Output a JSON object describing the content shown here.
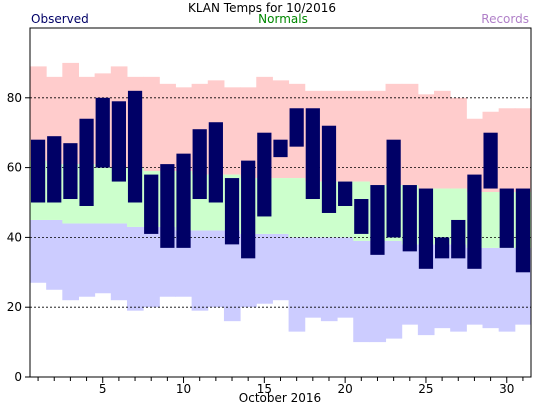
{
  "chart_data": {
    "type": "bar",
    "title": "KLAN Temps for 10/2016",
    "xlabel": "October 2016",
    "ylabel": "",
    "xlim": [
      0.5,
      31.5
    ],
    "ylim": [
      0,
      100
    ],
    "grid": "dashed-y",
    "legend": [
      {
        "name": "Observed",
        "color": "#000066"
      },
      {
        "name": "Normals",
        "color": "#008800"
      },
      {
        "name": "Records",
        "color": "#b080c8"
      }
    ],
    "x_ticks": [
      5,
      10,
      15,
      20,
      25,
      30
    ],
    "y_ticks": [
      0,
      20,
      40,
      60,
      80
    ],
    "days": [
      1,
      2,
      3,
      4,
      5,
      6,
      7,
      8,
      9,
      10,
      11,
      12,
      13,
      14,
      15,
      16,
      17,
      18,
      19,
      20,
      21,
      22,
      23,
      24,
      25,
      26,
      27,
      28,
      29,
      30,
      31
    ],
    "series": [
      {
        "name": "Records",
        "record_high": [
          89,
          86,
          90,
          86,
          87,
          89,
          86,
          86,
          84,
          83,
          84,
          85,
          83,
          83,
          86,
          85,
          84,
          82,
          82,
          82,
          82,
          82,
          84,
          84,
          81,
          82,
          80,
          74,
          76,
          77,
          77
        ],
        "record_low": [
          27,
          25,
          22,
          23,
          24,
          22,
          19,
          20,
          23,
          23,
          19,
          20,
          16,
          20,
          21,
          22,
          13,
          17,
          16,
          17,
          10,
          10,
          11,
          15,
          12,
          14,
          13,
          15,
          14,
          13,
          15
        ]
      },
      {
        "name": "Normals",
        "normal_high": [
          62,
          61,
          61,
          61,
          60,
          60,
          60,
          59,
          59,
          59,
          58,
          58,
          58,
          57,
          57,
          57,
          57,
          56,
          56,
          56,
          56,
          55,
          55,
          55,
          54,
          54,
          54,
          53,
          53,
          53,
          53
        ],
        "normal_low": [
          45,
          45,
          44,
          44,
          44,
          44,
          43,
          43,
          43,
          42,
          42,
          42,
          42,
          41,
          41,
          41,
          40,
          40,
          40,
          40,
          39,
          39,
          39,
          38,
          38,
          38,
          38,
          37,
          37,
          37,
          37
        ]
      },
      {
        "name": "Observed",
        "high": [
          68,
          69,
          67,
          74,
          80,
          79,
          82,
          58,
          61,
          64,
          71,
          73,
          57,
          62,
          70,
          68,
          77,
          77,
          72,
          56,
          51,
          55,
          68,
          55,
          54,
          40,
          45,
          58,
          70,
          54,
          54
        ],
        "low": [
          50,
          50,
          51,
          49,
          60,
          56,
          50,
          41,
          37,
          37,
          51,
          50,
          38,
          34,
          46,
          63,
          66,
          51,
          47,
          49,
          41,
          35,
          40,
          36,
          31,
          34,
          34,
          31,
          54,
          37,
          30
        ]
      }
    ]
  }
}
